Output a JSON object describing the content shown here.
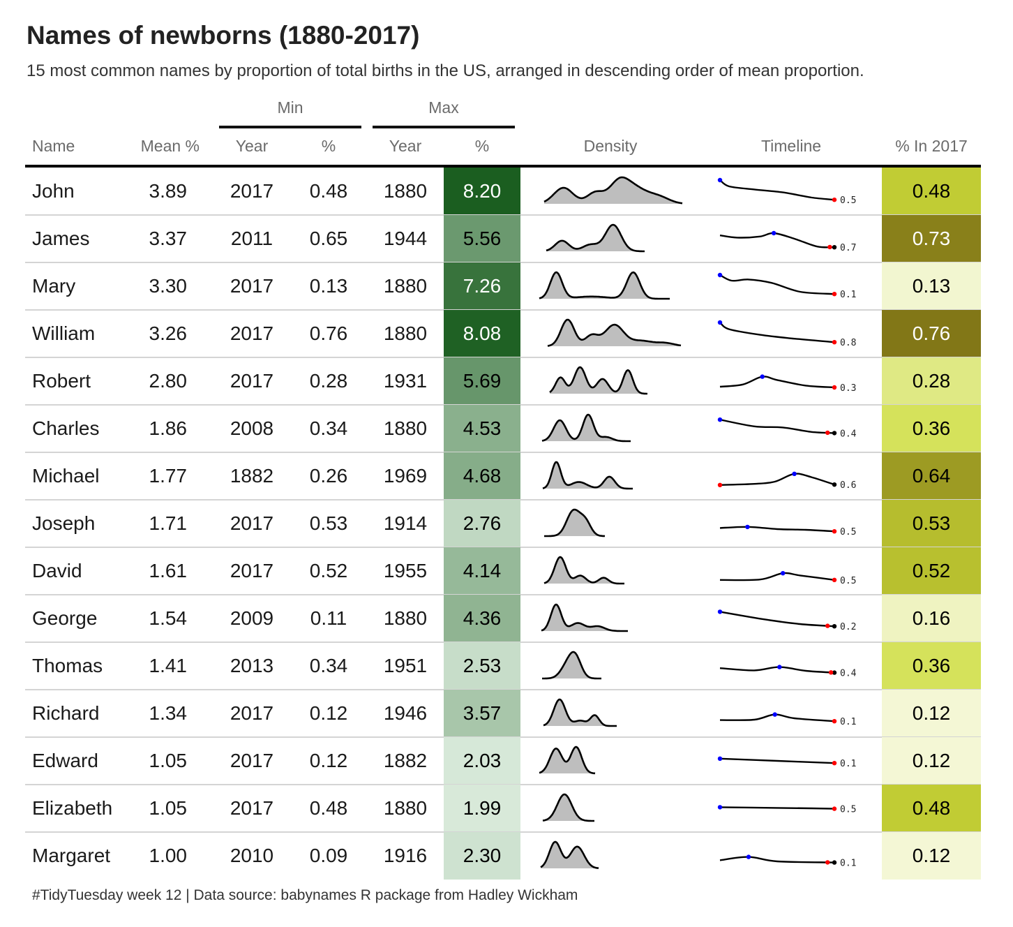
{
  "title": "Names of newborns (1880-2017)",
  "subtitle": "15 most common names by proportion of total births in the US, arranged in descending order of mean proportion.",
  "spanners": {
    "min": "Min",
    "max": "Max"
  },
  "columns": {
    "name": "Name",
    "mean": "Mean %",
    "min_year": "Year",
    "min_pct": "%",
    "max_year": "Year",
    "max_pct": "%",
    "density": "Density",
    "timeline": "Timeline",
    "pct_2017": "% In 2017"
  },
  "footer": "#TidyTuesday week 12 | Data source: babynames R package from Hadley Wickham",
  "colors": {
    "density_fill": "#bebebe",
    "line": "#000000",
    "max_point": "#0000ff",
    "min_point": "#ff0000",
    "max_scale": [
      "#e8f5e9",
      "#1b5e20"
    ],
    "pct2017_scale": [
      "#f7f9e3",
      "#cddc39",
      "#827717"
    ]
  },
  "chart_data": {
    "type": "table",
    "rows": [
      {
        "name": "John",
        "mean": "3.89",
        "min_year": "2017",
        "min_pct": "0.48",
        "max_year": "1880",
        "max_pct": "8.20",
        "pct_2017": "0.48",
        "label_2017": "0.5"
      },
      {
        "name": "James",
        "mean": "3.37",
        "min_year": "2011",
        "min_pct": "0.65",
        "max_year": "1944",
        "max_pct": "5.56",
        "pct_2017": "0.73",
        "label_2017": "0.7"
      },
      {
        "name": "Mary",
        "mean": "3.30",
        "min_year": "2017",
        "min_pct": "0.13",
        "max_year": "1880",
        "max_pct": "7.26",
        "pct_2017": "0.13",
        "label_2017": "0.1"
      },
      {
        "name": "William",
        "mean": "3.26",
        "min_year": "2017",
        "min_pct": "0.76",
        "max_year": "1880",
        "max_pct": "8.08",
        "pct_2017": "0.76",
        "label_2017": "0.8"
      },
      {
        "name": "Robert",
        "mean": "2.80",
        "min_year": "2017",
        "min_pct": "0.28",
        "max_year": "1931",
        "max_pct": "5.69",
        "pct_2017": "0.28",
        "label_2017": "0.3"
      },
      {
        "name": "Charles",
        "mean": "1.86",
        "min_year": "2008",
        "min_pct": "0.34",
        "max_year": "1880",
        "max_pct": "4.53",
        "pct_2017": "0.36",
        "label_2017": "0.4"
      },
      {
        "name": "Michael",
        "mean": "1.77",
        "min_year": "1882",
        "min_pct": "0.26",
        "max_year": "1969",
        "max_pct": "4.68",
        "pct_2017": "0.64",
        "label_2017": "0.6"
      },
      {
        "name": "Joseph",
        "mean": "1.71",
        "min_year": "2017",
        "min_pct": "0.53",
        "max_year": "1914",
        "max_pct": "2.76",
        "pct_2017": "0.53",
        "label_2017": "0.5"
      },
      {
        "name": "David",
        "mean": "1.61",
        "min_year": "2017",
        "min_pct": "0.52",
        "max_year": "1955",
        "max_pct": "4.14",
        "pct_2017": "0.52",
        "label_2017": "0.5"
      },
      {
        "name": "George",
        "mean": "1.54",
        "min_year": "2009",
        "min_pct": "0.11",
        "max_year": "1880",
        "max_pct": "4.36",
        "pct_2017": "0.16",
        "label_2017": "0.2"
      },
      {
        "name": "Thomas",
        "mean": "1.41",
        "min_year": "2013",
        "min_pct": "0.34",
        "max_year": "1951",
        "max_pct": "2.53",
        "pct_2017": "0.36",
        "label_2017": "0.4"
      },
      {
        "name": "Richard",
        "mean": "1.34",
        "min_year": "2017",
        "min_pct": "0.12",
        "max_year": "1946",
        "max_pct": "3.57",
        "pct_2017": "0.12",
        "label_2017": "0.1"
      },
      {
        "name": "Edward",
        "mean": "1.05",
        "min_year": "2017",
        "min_pct": "0.12",
        "max_year": "1882",
        "max_pct": "2.03",
        "pct_2017": "0.12",
        "label_2017": "0.1"
      },
      {
        "name": "Elizabeth",
        "mean": "1.05",
        "min_year": "2017",
        "min_pct": "0.48",
        "max_year": "1880",
        "max_pct": "1.99",
        "pct_2017": "0.48",
        "label_2017": "0.5"
      },
      {
        "name": "Margaret",
        "mean": "1.00",
        "min_year": "2010",
        "min_pct": "0.09",
        "max_year": "1916",
        "max_pct": "2.30",
        "pct_2017": "0.12",
        "label_2017": "0.1"
      }
    ]
  }
}
